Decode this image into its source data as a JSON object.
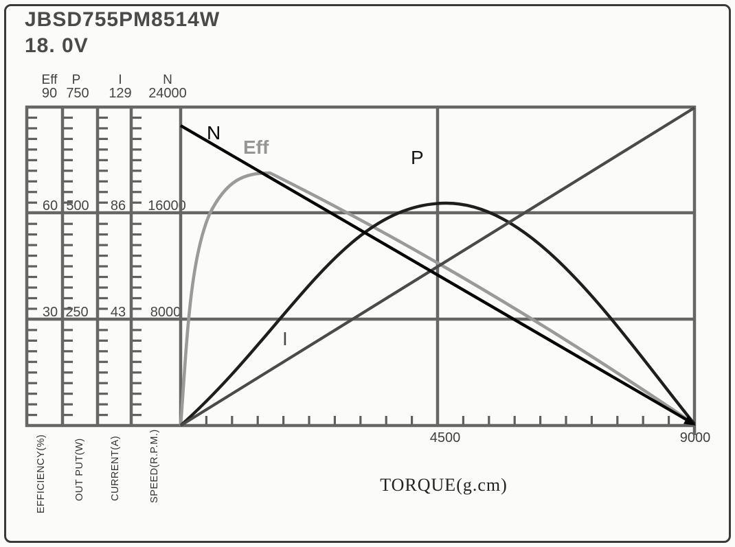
{
  "title": "JBSD755PM8514W",
  "voltage": "18. 0V",
  "columns": [
    {
      "name": "Eff",
      "top_value": "90",
      "mid_value": "60",
      "low_value": "30",
      "unit_label": "EFFICIENCY(%)"
    },
    {
      "name": "P",
      "top_value": "750",
      "mid_value": "500",
      "low_value": "250",
      "unit_label": "OUT PUT(W)"
    },
    {
      "name": "I",
      "top_value": "129",
      "mid_value": "86",
      "low_value": "43",
      "unit_label": "CURRENT(A)"
    },
    {
      "name": "N",
      "top_value": "24000",
      "mid_value": "16000",
      "low_value": "8000",
      "unit_label": "SPEED(R.P.M.)"
    }
  ],
  "x_axis": {
    "label": "TORQUE(g.cm)",
    "mid_tick": "4500",
    "max_tick": "9000"
  },
  "curve_labels": {
    "speed": "N",
    "efficiency": "Eff",
    "power": "P",
    "current": "I"
  },
  "colors": {
    "grid": "#666666",
    "frame": "#3a3a3a",
    "speed_line": "#050505",
    "efficiency_curve": "#9a9a9a",
    "power_curve": "#1e1e1e",
    "current_line": "#4a4a4a",
    "text": "#3f3f3f"
  },
  "chart_data": {
    "type": "line",
    "title": "JBSD755PM8514W",
    "subtitle": "18. 0V",
    "xlabel": "TORQUE(g.cm)",
    "x_range": [
      0,
      9000
    ],
    "x_tick_labels": [
      4500,
      9000
    ],
    "x_minor_tick_step": 450,
    "grid": true,
    "legend_position": "inline-labels",
    "y_axes": [
      {
        "id": "Eff",
        "label": "EFFICIENCY(%)",
        "range": [
          0,
          90
        ],
        "ticks": [
          30,
          60,
          90
        ]
      },
      {
        "id": "P",
        "label": "OUT PUT(W)",
        "range": [
          0,
          750
        ],
        "ticks": [
          250,
          500,
          750
        ]
      },
      {
        "id": "I",
        "label": "CURRENT(A)",
        "range": [
          0,
          129
        ],
        "ticks": [
          43,
          86,
          129
        ]
      },
      {
        "id": "N",
        "label": "SPEED(R.P.M.)",
        "range": [
          0,
          24000
        ],
        "ticks": [
          8000,
          16000,
          24000
        ]
      }
    ],
    "series": [
      {
        "name": "N",
        "axis": "N",
        "color": "#050505",
        "style": "straight-line-with-arrow",
        "points": [
          [
            0,
            22500
          ],
          [
            9000,
            0
          ]
        ]
      },
      {
        "name": "Eff",
        "axis": "Eff",
        "color": "#9a9a9a",
        "style": "curve",
        "points": [
          [
            0,
            0
          ],
          [
            200,
            30
          ],
          [
            500,
            60
          ],
          [
            1560,
            71
          ],
          [
            3370,
            56
          ],
          [
            5200,
            39
          ],
          [
            5600,
            35
          ],
          [
            7660,
            15
          ],
          [
            9000,
            0
          ]
        ],
        "peak": {
          "torque": 1560,
          "value": 71
        }
      },
      {
        "name": "P",
        "axis": "P",
        "color": "#1e1e1e",
        "style": "curve",
        "points": [
          [
            0,
            0
          ],
          [
            1590,
            250
          ],
          [
            3510,
            497
          ],
          [
            4650,
            523
          ],
          [
            5790,
            473
          ],
          [
            6820,
            323
          ],
          [
            7840,
            185
          ],
          [
            9000,
            0
          ]
        ],
        "peak": {
          "torque": 4650,
          "value": 523
        }
      },
      {
        "name": "I",
        "axis": "I",
        "color": "#4a4a4a",
        "style": "straight-line",
        "points": [
          [
            0,
            0
          ],
          [
            9000,
            129
          ]
        ]
      }
    ]
  }
}
